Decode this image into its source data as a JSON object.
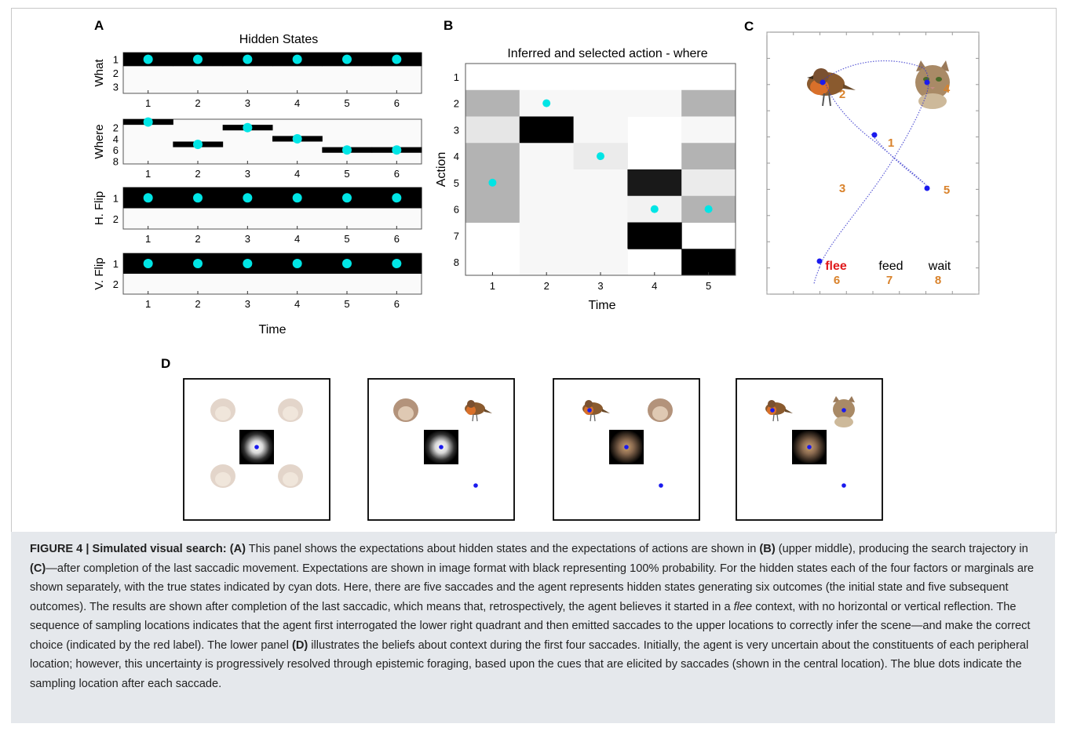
{
  "figure": {
    "panels": {
      "A": {
        "label": "A",
        "title": "Hidden States",
        "xlabel": "Time",
        "x_ticks": [
          "1",
          "2",
          "3",
          "4",
          "5",
          "6"
        ],
        "subplots": [
          {
            "ylabel": "What",
            "y_ticks": [
              "1",
              "2",
              "3"
            ],
            "n_states": 3,
            "true_states": [
              1,
              1,
              1,
              1,
              1,
              1
            ],
            "beliefs": [
              1,
              1,
              1,
              1,
              1,
              1
            ]
          },
          {
            "ylabel": "Where",
            "y_ticks": [
              "2",
              "4",
              "6",
              "8"
            ],
            "n_states": 8,
            "true_states": [
              1,
              5,
              2,
              4,
              6,
              6
            ],
            "beliefs": [
              1,
              5,
              2,
              4,
              6,
              6
            ]
          },
          {
            "ylabel": "H. Flip",
            "y_ticks": [
              "1",
              "2"
            ],
            "n_states": 2,
            "true_states": [
              1,
              1,
              1,
              1,
              1,
              1
            ],
            "beliefs": [
              1,
              1,
              1,
              1,
              1,
              1
            ]
          },
          {
            "ylabel": "V. Flip",
            "y_ticks": [
              "1",
              "2"
            ],
            "n_states": 2,
            "true_states": [
              1,
              1,
              1,
              1,
              1,
              1
            ],
            "beliefs": [
              1,
              1,
              1,
              1,
              1,
              1
            ]
          }
        ]
      },
      "B": {
        "label": "B",
        "title": "Inferred and selected action - where",
        "xlabel": "Time",
        "ylabel": "Action",
        "x_ticks": [
          "1",
          "2",
          "3",
          "4",
          "5"
        ],
        "y_ticks": [
          "1",
          "2",
          "3",
          "4",
          "5",
          "6",
          "7",
          "8"
        ],
        "selected_actions": [
          5,
          2,
          4,
          6,
          6
        ],
        "probabilities": [
          [
            0,
            0,
            0,
            0,
            0,
            0,
            0,
            0
          ],
          [
            0.3,
            0.03,
            0.03,
            0.03,
            0.3,
            0.03,
            0.03,
            0
          ],
          [
            0.1,
            1,
            0.03,
            0,
            0.03,
            0.03,
            0.03,
            0
          ],
          [
            0.3,
            0.03,
            0.08,
            0,
            0.3,
            0.03,
            0.03,
            0
          ],
          [
            0.3,
            0.03,
            0.03,
            0.9,
            0.08,
            0.03,
            0.03,
            0
          ],
          [
            0.3,
            0.03,
            0.03,
            0.05,
            0.3,
            0.03,
            0.03,
            0
          ],
          [
            0,
            0.03,
            0.03,
            1,
            0,
            0.03,
            0.03,
            0
          ],
          [
            0,
            0.03,
            0.03,
            0,
            1,
            0,
            0,
            0
          ]
        ]
      },
      "C": {
        "label": "C",
        "numbers": [
          "1",
          "2",
          "3",
          "4",
          "5",
          "6",
          "7",
          "8"
        ],
        "labels": {
          "flee": "flee",
          "feed": "feed",
          "wait": "wait"
        },
        "colors": {
          "numbers": "#d9822b",
          "flee": "#e0191b",
          "path": "#3333cc",
          "dots": "#1a1aee"
        },
        "icons": {
          "bird": "robin-bird-image",
          "cat": "cat-face-image"
        }
      },
      "D": {
        "label": "D",
        "panels": [
          {
            "id": 1,
            "description_icons": [
              "faint-bird",
              "faint-bird",
              "faint-bird",
              "faint-bird"
            ]
          },
          {
            "id": 2,
            "description_icons": [
              "faint-cat",
              "bird",
              "none",
              "none"
            ]
          },
          {
            "id": 3,
            "description_icons": [
              "bird",
              "faint-cat",
              "none",
              "none"
            ]
          },
          {
            "id": 4,
            "description_icons": [
              "bird",
              "cat",
              "none",
              "none"
            ]
          }
        ]
      }
    },
    "colors": {
      "cyan": "#00e5e5",
      "black": "#000000",
      "caption_bg": "#e5e8ec"
    }
  },
  "caption": {
    "figure_label": "FIGURE 4 | Simulated visual search:",
    "a_label": "(A)",
    "text_1": " This panel shows the expectations about hidden states and the expectations of actions are shown in ",
    "b_label": "(B)",
    "text_2": " (upper middle), producing the search trajectory in ",
    "c_label": "(C)",
    "text_3": "—after completion of the last saccadic movement. Expectations are shown in image format with black representing 100% probability. For the hidden states each of the four factors or marginals are shown separately, with the true states indicated by cyan dots. Here, there are five saccades and the agent represents hidden states generating six outcomes (the initial state and five subsequent outcomes). The results are shown after completion of the last saccadic, which means that, retrospectively, the agent believes it started in a ",
    "flee_word": "flee",
    "text_4": " context, with no horizontal or vertical reflection. The sequence of sampling locations indicates that the agent first interrogated the lower right quadrant and then emitted saccades to the upper locations to correctly infer the scene—and make the correct choice (indicated by the red label). The lower panel ",
    "d_label": "(D)",
    "text_5": " illustrates the beliefs about context during the first four saccades. Initially, the agent is very uncertain about the constituents of each peripheral location; however, this uncertainty is progressively resolved through epistemic foraging, based upon the cues that are elicited by saccades (shown in the central location). The blue dots indicate the sampling location after each saccade."
  }
}
